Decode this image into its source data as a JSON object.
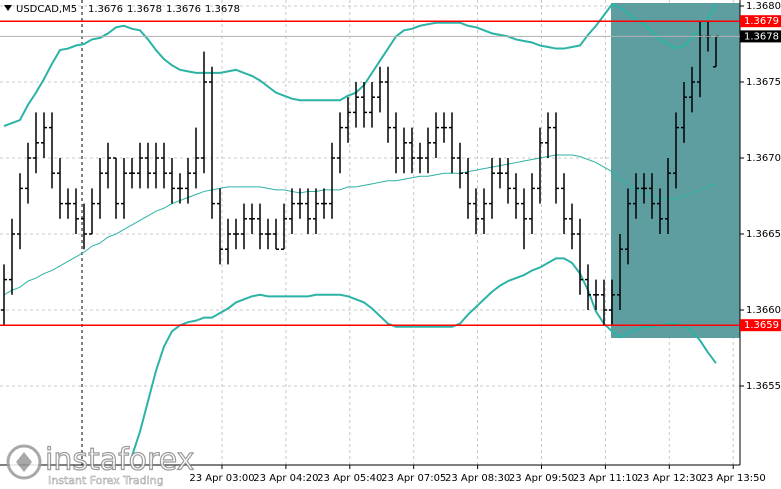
{
  "chart_data": {
    "type": "ohlc",
    "title": "USDCAD,M5",
    "header_values": [
      1.3676,
      1.3678,
      1.3676,
      1.3678
    ],
    "open": [
      1.366,
      1.3662,
      1.3665,
      1.3668,
      1.367,
      1.3671,
      1.3672,
      1.3669,
      1.3667,
      1.3667,
      1.3666,
      1.3665,
      1.3667,
      1.3669,
      1.367,
      1.3667,
      1.3669,
      1.3669,
      1.367,
      1.3669,
      1.367,
      1.3669,
      1.3668,
      1.3668,
      1.3669,
      1.367,
      1.3675,
      1.3667,
      1.3664,
      1.3665,
      1.3665,
      1.3666,
      1.3666,
      1.3665,
      1.3665,
      1.3664,
      1.3666,
      1.3667,
      1.3667,
      1.3666,
      1.3667,
      1.3667,
      1.367,
      1.3672,
      1.3673,
      1.3674,
      1.3673,
      1.3674,
      1.3675,
      1.3672,
      1.367,
      1.3671,
      1.367,
      1.367,
      1.3671,
      1.3672,
      1.3672,
      1.367,
      1.3669,
      1.3667,
      1.3666,
      1.3667,
      1.3669,
      1.3669,
      1.3668,
      1.3667,
      1.3666,
      1.3668,
      1.3671,
      1.3672,
      1.3668,
      1.3666,
      1.3665,
      1.3662,
      1.3661,
      1.3661,
      1.366,
      1.3661,
      1.3664,
      1.3667,
      1.3668,
      1.3668,
      1.3667,
      1.3666,
      1.3669,
      1.3672,
      1.3674,
      1.3675,
      1.3678,
      1.3676
    ],
    "high": [
      1.3663,
      1.3666,
      1.3669,
      1.3671,
      1.3673,
      1.3673,
      1.3673,
      1.367,
      1.3668,
      1.3668,
      1.3667,
      1.3668,
      1.367,
      1.3671,
      1.367,
      1.367,
      1.367,
      1.3671,
      1.3671,
      1.3671,
      1.3671,
      1.367,
      1.3669,
      1.367,
      1.3672,
      1.3677,
      1.3676,
      1.3668,
      1.3666,
      1.3666,
      1.3667,
      1.3667,
      1.3667,
      1.3666,
      1.3666,
      1.3667,
      1.3668,
      1.3668,
      1.3668,
      1.3668,
      1.3668,
      1.3671,
      1.3673,
      1.3674,
      1.3675,
      1.3675,
      1.3675,
      1.3676,
      1.3676,
      1.3673,
      1.3672,
      1.3672,
      1.3671,
      1.3672,
      1.3673,
      1.3673,
      1.3673,
      1.3671,
      1.367,
      1.3668,
      1.3668,
      1.367,
      1.367,
      1.367,
      1.3669,
      1.3668,
      1.3669,
      1.3672,
      1.3673,
      1.3673,
      1.3669,
      1.3667,
      1.3666,
      1.3663,
      1.3662,
      1.3662,
      1.3662,
      1.3665,
      1.3668,
      1.3669,
      1.3669,
      1.3669,
      1.3668,
      1.367,
      1.3673,
      1.3675,
      1.3676,
      1.3679,
      1.3679,
      1.3678
    ],
    "low": [
      1.3659,
      1.3661,
      1.3664,
      1.3667,
      1.3669,
      1.367,
      1.3668,
      1.3666,
      1.3666,
      1.3665,
      1.3664,
      1.3665,
      1.3666,
      1.3668,
      1.3666,
      1.3666,
      1.3668,
      1.3668,
      1.3668,
      1.3668,
      1.3668,
      1.3667,
      1.3667,
      1.3667,
      1.3668,
      1.3669,
      1.3666,
      1.3663,
      1.3663,
      1.3664,
      1.3664,
      1.3665,
      1.3664,
      1.3664,
      1.3664,
      1.3664,
      1.3665,
      1.3666,
      1.3665,
      1.3665,
      1.3666,
      1.3666,
      1.3669,
      1.3671,
      1.3672,
      1.3672,
      1.3672,
      1.3673,
      1.3671,
      1.3669,
      1.3669,
      1.3669,
      1.3669,
      1.3669,
      1.367,
      1.3671,
      1.3669,
      1.3668,
      1.3666,
      1.3665,
      1.3665,
      1.3666,
      1.3668,
      1.3667,
      1.3666,
      1.3664,
      1.3665,
      1.3667,
      1.367,
      1.3667,
      1.3665,
      1.3664,
      1.3661,
      1.366,
      1.366,
      1.3659,
      1.3659,
      1.366,
      1.3663,
      1.3666,
      1.3667,
      1.3666,
      1.3665,
      1.3665,
      1.3668,
      1.3671,
      1.3673,
      1.3674,
      1.3677,
      1.3676
    ],
    "close": [
      1.3662,
      1.3665,
      1.3668,
      1.367,
      1.3671,
      1.3672,
      1.3669,
      1.3667,
      1.3667,
      1.3666,
      1.3665,
      1.3667,
      1.3669,
      1.367,
      1.3667,
      1.3669,
      1.3669,
      1.367,
      1.3669,
      1.367,
      1.3669,
      1.3668,
      1.3668,
      1.3669,
      1.367,
      1.3675,
      1.3667,
      1.3664,
      1.3665,
      1.3665,
      1.3666,
      1.3666,
      1.3665,
      1.3665,
      1.3664,
      1.3666,
      1.3667,
      1.3667,
      1.3666,
      1.3667,
      1.3667,
      1.367,
      1.3672,
      1.3673,
      1.3674,
      1.3673,
      1.3674,
      1.3675,
      1.3672,
      1.367,
      1.3671,
      1.367,
      1.367,
      1.3671,
      1.3672,
      1.3672,
      1.367,
      1.3669,
      1.3667,
      1.3666,
      1.3667,
      1.3669,
      1.3669,
      1.3668,
      1.3667,
      1.3666,
      1.3668,
      1.3671,
      1.3672,
      1.3668,
      1.3666,
      1.3665,
      1.3662,
      1.3661,
      1.3661,
      1.366,
      1.3661,
      1.3664,
      1.3667,
      1.3668,
      1.3668,
      1.3667,
      1.3666,
      1.3669,
      1.3672,
      1.3674,
      1.3675,
      1.3678,
      1.3678,
      1.3678
    ],
    "bar_color": "#000000",
    "bands": {
      "color": "#2bb3a6",
      "upper": [
        1.36721,
        1.36723,
        1.36725,
        1.36735,
        1.36743,
        1.36752,
        1.36762,
        1.36771,
        1.36772,
        1.36774,
        1.36775,
        1.36778,
        1.36779,
        1.36782,
        1.36786,
        1.36787,
        1.36785,
        1.36784,
        1.36778,
        1.36771,
        1.36765,
        1.36761,
        1.36758,
        1.36757,
        1.36756,
        1.36756,
        1.36756,
        1.36756,
        1.36757,
        1.36758,
        1.36756,
        1.36754,
        1.36751,
        1.36747,
        1.36743,
        1.36741,
        1.36739,
        1.36738,
        1.36738,
        1.36738,
        1.36738,
        1.36738,
        1.36738,
        1.36741,
        1.36743,
        1.36748,
        1.36756,
        1.36764,
        1.36772,
        1.3678,
        1.36784,
        1.36785,
        1.36787,
        1.36788,
        1.36789,
        1.36789,
        1.36789,
        1.36789,
        1.36787,
        1.36786,
        1.36784,
        1.36782,
        1.36781,
        1.3678,
        1.36778,
        1.36777,
        1.36776,
        1.36774,
        1.36773,
        1.36772,
        1.36772,
        1.36773,
        1.36774,
        1.36781,
        1.36787,
        1.36794,
        1.36801,
        1.36799,
        1.36795,
        1.36791,
        1.36788,
        1.36783,
        1.36778,
        1.36775,
        1.36772,
        1.36774,
        1.36779,
        1.36784,
        1.36792,
        1.36801
      ],
      "middle": [
        1.3661,
        1.36613,
        1.36615,
        1.36619,
        1.36621,
        1.36624,
        1.36626,
        1.36629,
        1.36632,
        1.36635,
        1.36638,
        1.36642,
        1.36644,
        1.36648,
        1.3665,
        1.36653,
        1.36656,
        1.36659,
        1.36662,
        1.36665,
        1.36667,
        1.3667,
        1.36672,
        1.36674,
        1.36676,
        1.36678,
        1.36679,
        1.3668,
        1.36681,
        1.36681,
        1.36681,
        1.36681,
        1.36681,
        1.3668,
        1.36679,
        1.36679,
        1.36678,
        1.36677,
        1.36678,
        1.36678,
        1.36679,
        1.36679,
        1.36679,
        1.36681,
        1.36681,
        1.36682,
        1.36683,
        1.36684,
        1.36685,
        1.36685,
        1.36686,
        1.36687,
        1.36688,
        1.36688,
        1.36689,
        1.3669,
        1.3669,
        1.3669,
        1.36691,
        1.36692,
        1.36693,
        1.36694,
        1.36695,
        1.36696,
        1.36697,
        1.36698,
        1.36699,
        1.367,
        1.36701,
        1.36702,
        1.36702,
        1.36702,
        1.36701,
        1.36699,
        1.36697,
        1.36694,
        1.36691,
        1.36686,
        1.36683,
        1.36679,
        1.36677,
        1.36675,
        1.36673,
        1.36673,
        1.36673,
        1.36675,
        1.36677,
        1.36679,
        1.36681,
        1.36683
      ],
      "lower": [
        null,
        null,
        null,
        null,
        null,
        null,
        null,
        null,
        null,
        null,
        null,
        null,
        null,
        null,
        null,
        null,
        1.36504,
        1.3652,
        1.3654,
        1.3656,
        1.36576,
        1.36586,
        1.3659,
        1.36592,
        1.36593,
        1.36595,
        1.36595,
        1.36598,
        1.36601,
        1.36605,
        1.36607,
        1.36609,
        1.3661,
        1.36609,
        1.36609,
        1.36609,
        1.36609,
        1.36609,
        1.36609,
        1.3661,
        1.3661,
        1.3661,
        1.3661,
        1.36609,
        1.36607,
        1.36605,
        1.36601,
        1.36596,
        1.36591,
        1.36589,
        1.36589,
        1.36589,
        1.36589,
        1.36589,
        1.36589,
        1.36589,
        1.36589,
        1.36591,
        1.36597,
        1.36602,
        1.36607,
        1.36612,
        1.36616,
        1.36619,
        1.36621,
        1.36623,
        1.36626,
        1.36628,
        1.36631,
        1.36634,
        1.36634,
        1.36631,
        1.36624,
        1.36613,
        1.36599,
        1.36591,
        1.36586,
        1.36582,
        1.36585,
        1.36587,
        1.36589,
        1.36589,
        1.3659,
        1.36591,
        1.36591,
        1.3659,
        1.36586,
        1.3658,
        1.36572,
        1.36565
      ]
    },
    "levels": [
      1.3679,
      1.3659
    ],
    "level_color": "#ff0000",
    "last_price": 1.3678,
    "ylim": [
      1.365,
      1.368
    ],
    "yticks": [
      {
        "value": 1.368,
        "label": "1.3680"
      },
      1.3675,
      {
        "value": 1.367,
        "label": "1.3670"
      },
      1.3665,
      {
        "value": 1.366,
        "label": "1.3660"
      },
      1.3655
    ],
    "grid": true,
    "xtick_labels": [
      "23 Apr 03:00",
      "23 Apr 04:20",
      "23 Apr 05:40",
      "23 Apr 07:05",
      "23 Apr 08:30",
      "23 Apr 09:50",
      "23 Apr 11:10",
      "23 Apr 12:30",
      "23 Apr 13:50"
    ],
    "watermark": {
      "brand": "instaforex",
      "tagline": "Instant Forex Trading"
    }
  }
}
